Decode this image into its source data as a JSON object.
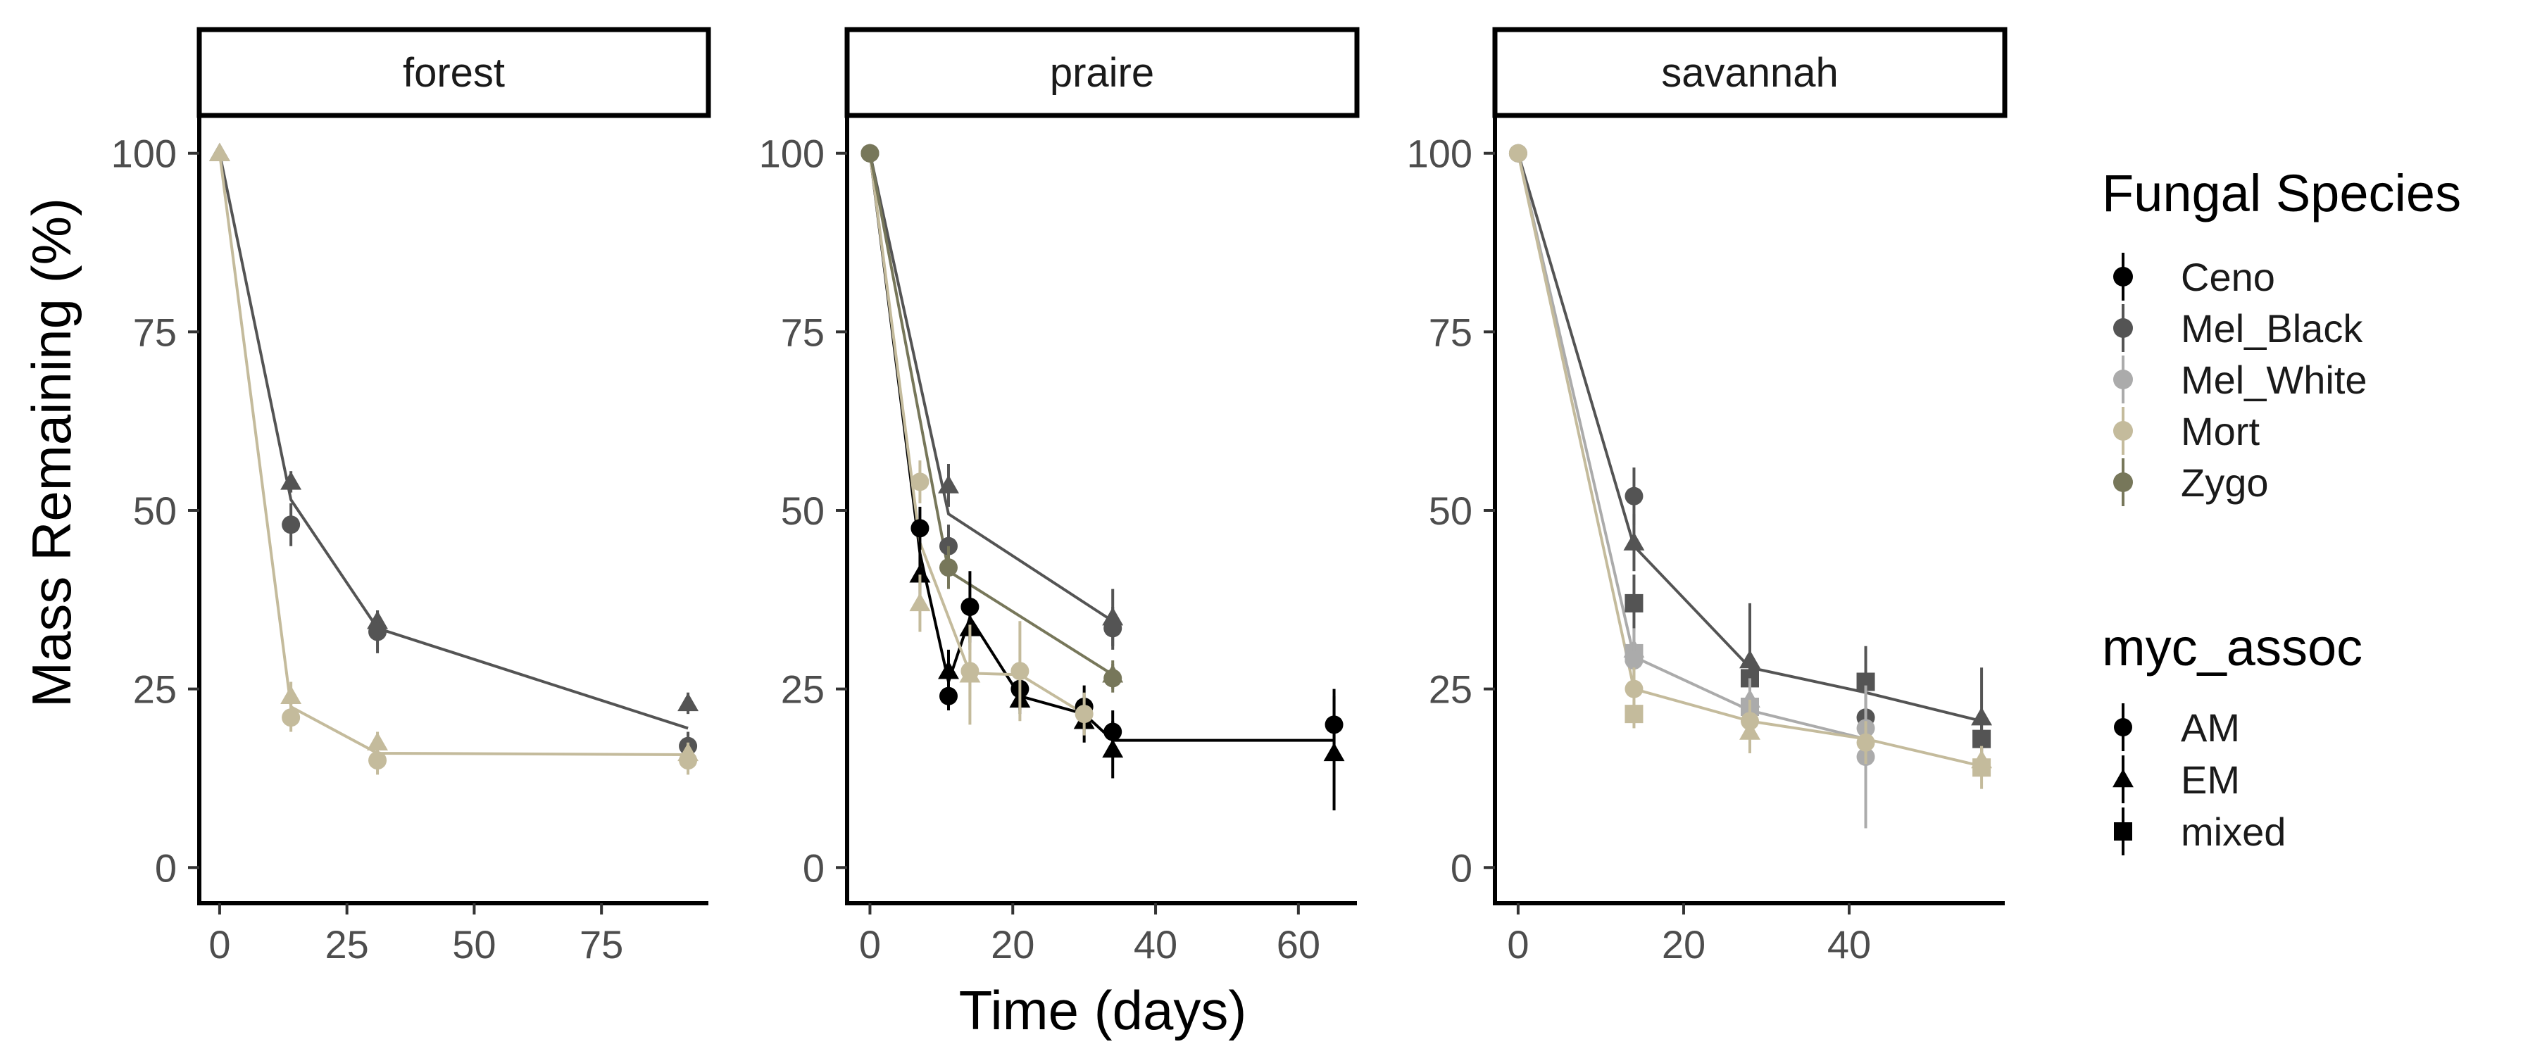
{
  "chart_data": {
    "type": "line",
    "xlabel": "Time (days)",
    "ylabel": "Mass Remaining (%)",
    "ylim": [
      0,
      100
    ],
    "y_ticks": [
      0,
      25,
      50,
      75,
      100
    ],
    "grid": false,
    "legend_placement": "right",
    "panels": [
      {
        "name": "forest",
        "xlim": [
          -4,
          96
        ],
        "x_ticks": [
          0,
          25,
          50,
          75
        ],
        "points": [
          {
            "species": "Mel_Black",
            "myc": "EM",
            "x": 0,
            "y": 100
          },
          {
            "species": "Mel_Black",
            "myc": "EM",
            "x": 14,
            "y": 54,
            "err": 1.5
          },
          {
            "species": "Mel_Black",
            "myc": "AM",
            "x": 14,
            "y": 48,
            "err": 3
          },
          {
            "species": "Mel_Black",
            "myc": "EM",
            "x": 31,
            "y": 34.5,
            "err": 1.5
          },
          {
            "species": "Mel_Black",
            "myc": "AM",
            "x": 31,
            "y": 33,
            "err": 3
          },
          {
            "species": "Mel_Black",
            "myc": "EM",
            "x": 92,
            "y": 23,
            "err": 1.5
          },
          {
            "species": "Mel_Black",
            "myc": "AM",
            "x": 92,
            "y": 17,
            "err": 2
          },
          {
            "species": "Mort",
            "myc": "EM",
            "x": 0,
            "y": 100
          },
          {
            "species": "Mort",
            "myc": "EM",
            "x": 14,
            "y": 24,
            "err": 2
          },
          {
            "species": "Mort",
            "myc": "AM",
            "x": 14,
            "y": 21,
            "err": 2
          },
          {
            "species": "Mort",
            "myc": "EM",
            "x": 31,
            "y": 17.5,
            "err": 1.5
          },
          {
            "species": "Mort",
            "myc": "AM",
            "x": 31,
            "y": 15,
            "err": 2
          },
          {
            "species": "Mort",
            "myc": "EM",
            "x": 92,
            "y": 16,
            "err": 1.5
          },
          {
            "species": "Mort",
            "myc": "AM",
            "x": 92,
            "y": 15,
            "err": 2
          }
        ],
        "lines": [
          {
            "species": "Mel_Black",
            "x": [
              0,
              14,
              31,
              92
            ],
            "y": [
              100,
              51.5,
              33.5,
              19.5
            ]
          },
          {
            "species": "Mort",
            "x": [
              0,
              14,
              31,
              92
            ],
            "y": [
              100,
              22.5,
              16,
              15.8
            ]
          }
        ]
      },
      {
        "name": "praire",
        "xlim": [
          -3.2,
          68.2
        ],
        "x_ticks": [
          0,
          20,
          40,
          60
        ],
        "points": [
          {
            "species": "Ceno",
            "myc": "AM",
            "x": 0,
            "y": 100
          },
          {
            "species": "Ceno",
            "myc": "AM",
            "x": 7,
            "y": 47.5,
            "err": 3
          },
          {
            "species": "Ceno",
            "myc": "EM",
            "x": 7,
            "y": 41,
            "err": 3
          },
          {
            "species": "Ceno",
            "myc": "AM",
            "x": 11,
            "y": 24,
            "err": 2
          },
          {
            "species": "Ceno",
            "myc": "EM",
            "x": 11,
            "y": 27.5,
            "err": 3
          },
          {
            "species": "Ceno",
            "myc": "AM",
            "x": 14,
            "y": 36.5,
            "err": 5
          },
          {
            "species": "Ceno",
            "myc": "EM",
            "x": 14,
            "y": 33.5,
            "err": 3
          },
          {
            "species": "Ceno",
            "myc": "AM",
            "x": 21,
            "y": 25,
            "err": 3
          },
          {
            "species": "Ceno",
            "myc": "EM",
            "x": 21,
            "y": 23.5,
            "err": 2
          },
          {
            "species": "Ceno",
            "myc": "AM",
            "x": 30,
            "y": 22.5,
            "err": 3
          },
          {
            "species": "Ceno",
            "myc": "EM",
            "x": 30,
            "y": 20.5,
            "err": 3
          },
          {
            "species": "Ceno",
            "myc": "AM",
            "x": 34,
            "y": 19,
            "err": 3
          },
          {
            "species": "Ceno",
            "myc": "EM",
            "x": 34,
            "y": 16.5,
            "err": 4
          },
          {
            "species": "Ceno",
            "myc": "AM",
            "x": 65,
            "y": 20,
            "err": 5
          },
          {
            "species": "Ceno",
            "myc": "EM",
            "x": 65,
            "y": 16,
            "err": 8
          },
          {
            "species": "Mel_Black",
            "myc": "AM",
            "x": 0,
            "y": 100
          },
          {
            "species": "Mel_Black",
            "myc": "EM",
            "x": 11,
            "y": 53.5,
            "err": 3
          },
          {
            "species": "Mel_Black",
            "myc": "AM",
            "x": 11,
            "y": 45,
            "err": 3
          },
          {
            "species": "Mel_Black",
            "myc": "EM",
            "x": 34,
            "y": 35,
            "err": 4
          },
          {
            "species": "Mel_Black",
            "myc": "AM",
            "x": 34,
            "y": 33.5,
            "err": 3
          },
          {
            "species": "Mort",
            "myc": "AM",
            "x": 0,
            "y": 100
          },
          {
            "species": "Mort",
            "myc": "AM",
            "x": 7,
            "y": 54,
            "err": 3
          },
          {
            "species": "Mort",
            "myc": "EM",
            "x": 7,
            "y": 37,
            "err": 4
          },
          {
            "species": "Mort",
            "myc": "AM",
            "x": 14,
            "y": 27.5,
            "err": 4
          },
          {
            "species": "Mort",
            "myc": "EM",
            "x": 14,
            "y": 27,
            "err": 7
          },
          {
            "species": "Mort",
            "myc": "AM",
            "x": 21,
            "y": 27.5,
            "err": 7
          },
          {
            "species": "Mort",
            "myc": "AM",
            "x": 30,
            "y": 21.5,
            "err": 3
          },
          {
            "species": "Zygo",
            "myc": "AM",
            "x": 0,
            "y": 100
          },
          {
            "species": "Zygo",
            "myc": "AM",
            "x": 11,
            "y": 42,
            "err": 3
          },
          {
            "species": "Zygo",
            "myc": "EM",
            "x": 34,
            "y": 27,
            "err": 2
          },
          {
            "species": "Zygo",
            "myc": "AM",
            "x": 34,
            "y": 26.5,
            "err": 2
          }
        ],
        "lines": [
          {
            "species": "Ceno",
            "x": [
              0,
              7,
              11,
              14,
              21,
              30,
              34,
              65
            ],
            "y": [
              100,
              44,
              26,
              35,
              24,
              21.5,
              17.8,
              17.8
            ]
          },
          {
            "species": "Mel_Black",
            "x": [
              0,
              11,
              34
            ],
            "y": [
              100,
              49.5,
              34.5
            ]
          },
          {
            "species": "Mort",
            "x": [
              0,
              7,
              14,
              21,
              30
            ],
            "y": [
              100,
              45.5,
              27.2,
              27,
              21.5
            ]
          },
          {
            "species": "Zygo",
            "x": [
              0,
              11,
              34
            ],
            "y": [
              100,
              41.5,
              27
            ]
          }
        ]
      },
      {
        "name": "savannah",
        "xlim": [
          -2.8,
          58.8
        ],
        "x_ticks": [
          0,
          20,
          40
        ],
        "points": [
          {
            "species": "Mel_Black",
            "myc": "AM",
            "x": 0,
            "y": 100
          },
          {
            "species": "Mel_Black",
            "myc": "AM",
            "x": 14,
            "y": 52,
            "err": 4
          },
          {
            "species": "Mel_Black",
            "myc": "EM",
            "x": 14,
            "y": 45.5,
            "err": 4
          },
          {
            "species": "Mel_Black",
            "myc": "mixed",
            "x": 14,
            "y": 37,
            "err": 4
          },
          {
            "species": "Mel_Black",
            "myc": "EM",
            "x": 28,
            "y": 29,
            "err": 8
          },
          {
            "species": "Mel_Black",
            "myc": "mixed",
            "x": 28,
            "y": 26.5,
            "err": 3
          },
          {
            "species": "Mel_Black",
            "myc": "mixed",
            "x": 42,
            "y": 26,
            "err": 5
          },
          {
            "species": "Mel_Black",
            "myc": "AM",
            "x": 42,
            "y": 21,
            "err": 3
          },
          {
            "species": "Mel_Black",
            "myc": "EM",
            "x": 56,
            "y": 21,
            "err": 7
          },
          {
            "species": "Mel_Black",
            "myc": "mixed",
            "x": 56,
            "y": 18,
            "err": 2
          },
          {
            "species": "Mel_White",
            "myc": "AM",
            "x": 0,
            "y": 100
          },
          {
            "species": "Mel_White",
            "myc": "EM",
            "x": 14,
            "y": 30.5,
            "err": 3
          },
          {
            "species": "Mel_White",
            "myc": "mixed",
            "x": 14,
            "y": 30,
            "err": 3
          },
          {
            "species": "Mel_White",
            "myc": "AM",
            "x": 14,
            "y": 29,
            "err": 3
          },
          {
            "species": "Mel_White",
            "myc": "EM",
            "x": 28,
            "y": 23.5,
            "err": 3
          },
          {
            "species": "Mel_White",
            "myc": "mixed",
            "x": 28,
            "y": 22.5,
            "err": 3
          },
          {
            "species": "Mel_White",
            "myc": "AM",
            "x": 42,
            "y": 19.5,
            "err": 3
          },
          {
            "species": "Mel_White",
            "myc": "AM",
            "x": 42,
            "y": 15.5,
            "err": 10
          },
          {
            "species": "Mort",
            "myc": "AM",
            "x": 0,
            "y": 100
          },
          {
            "species": "Mort",
            "myc": "AM",
            "x": 14,
            "y": 25,
            "err": 3
          },
          {
            "species": "Mort",
            "myc": "mixed",
            "x": 14,
            "y": 21.5,
            "err": 2
          },
          {
            "species": "Mort",
            "myc": "EM",
            "x": 28,
            "y": 19,
            "err": 3
          },
          {
            "species": "Mort",
            "myc": "AM",
            "x": 28,
            "y": 20.5,
            "err": 3
          },
          {
            "species": "Mort",
            "myc": "AM",
            "x": 42,
            "y": 17.5,
            "err": 3
          },
          {
            "species": "Mort",
            "myc": "EM",
            "x": 56,
            "y": 15,
            "err": 2
          },
          {
            "species": "Mort",
            "myc": "mixed",
            "x": 56,
            "y": 14,
            "err": 3
          }
        ],
        "lines": [
          {
            "species": "Mel_Black",
            "x": [
              0,
              14,
              28,
              42,
              56
            ],
            "y": [
              100,
              45,
              28,
              24.5,
              20.5
            ]
          },
          {
            "species": "Mel_White",
            "x": [
              0,
              14,
              28,
              42
            ],
            "y": [
              100,
              29.5,
              22,
              18
            ]
          },
          {
            "species": "Mort",
            "x": [
              0,
              14,
              28,
              42,
              56
            ],
            "y": [
              100,
              25,
              20.5,
              18,
              14.2
            ]
          }
        ]
      }
    ],
    "legend": {
      "color_title": "Fungal Species",
      "species": [
        {
          "name": "Ceno",
          "color": "#000000"
        },
        {
          "name": "Mel_Black",
          "color": "#545454"
        },
        {
          "name": "Mel_White",
          "color": "#ababab"
        },
        {
          "name": "Mort",
          "color": "#c4bb9c"
        },
        {
          "name": "Zygo",
          "color": "#77775a"
        }
      ],
      "shape_title": "myc_assoc",
      "shapes": [
        {
          "name": "AM",
          "shape": "circle"
        },
        {
          "name": "EM",
          "shape": "triangle"
        },
        {
          "name": "mixed",
          "shape": "square"
        }
      ]
    }
  }
}
